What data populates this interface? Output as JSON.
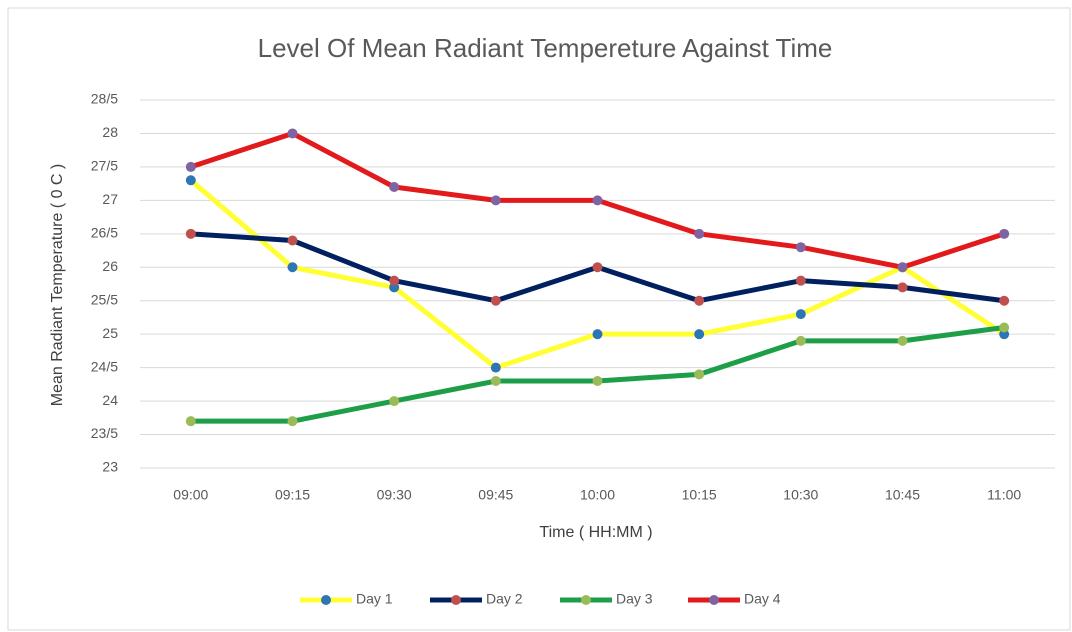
{
  "chart_data": {
    "type": "line",
    "title": "Level Of Mean Radiant Tempereture Against Time",
    "x_label": "Time ( HH:MM )",
    "y_label": "Mean Radiant Temperature ( 0 C )",
    "categories": [
      "09:00",
      "09:15",
      "09:30",
      "09:45",
      "10:00",
      "10:15",
      "10:30",
      "10:45",
      "11:00"
    ],
    "series": [
      {
        "name": "Day 1",
        "color": "#ffff33",
        "marker_color": "#2e75b6",
        "values": [
          27.3,
          26.0,
          25.7,
          24.5,
          25.0,
          25.0,
          25.3,
          26.0,
          25.0
        ]
      },
      {
        "name": "Day 2",
        "color": "#002060",
        "marker_color": "#c0504d",
        "values": [
          26.5,
          26.4,
          25.8,
          25.5,
          26.0,
          25.5,
          25.8,
          25.7,
          25.5
        ]
      },
      {
        "name": "Day 3",
        "color": "#1e9e48",
        "marker_color": "#9bbb59",
        "values": [
          23.7,
          23.7,
          24.0,
          24.3,
          24.3,
          24.4,
          24.9,
          24.9,
          25.1
        ]
      },
      {
        "name": "Day 4",
        "color": "#e31a1c",
        "marker_color": "#8064a2",
        "values": [
          27.5,
          28.0,
          27.2,
          27.0,
          27.0,
          26.5,
          26.3,
          26.0,
          26.5
        ]
      }
    ],
    "ylim": [
      23,
      28.5
    ],
    "yticks": [
      23,
      {
        "value": 23.5,
        "label": "23/5"
      },
      24,
      {
        "value": 24.5,
        "label": "24/5"
      },
      25,
      {
        "value": 25.5,
        "label": "25/5"
      },
      26,
      {
        "value": 26.5,
        "label": "26/5"
      },
      27,
      {
        "value": 27.5,
        "label": "27/5"
      },
      28,
      {
        "value": 28.5,
        "label": "28/5"
      }
    ],
    "grid": true,
    "legend": "bottom"
  }
}
